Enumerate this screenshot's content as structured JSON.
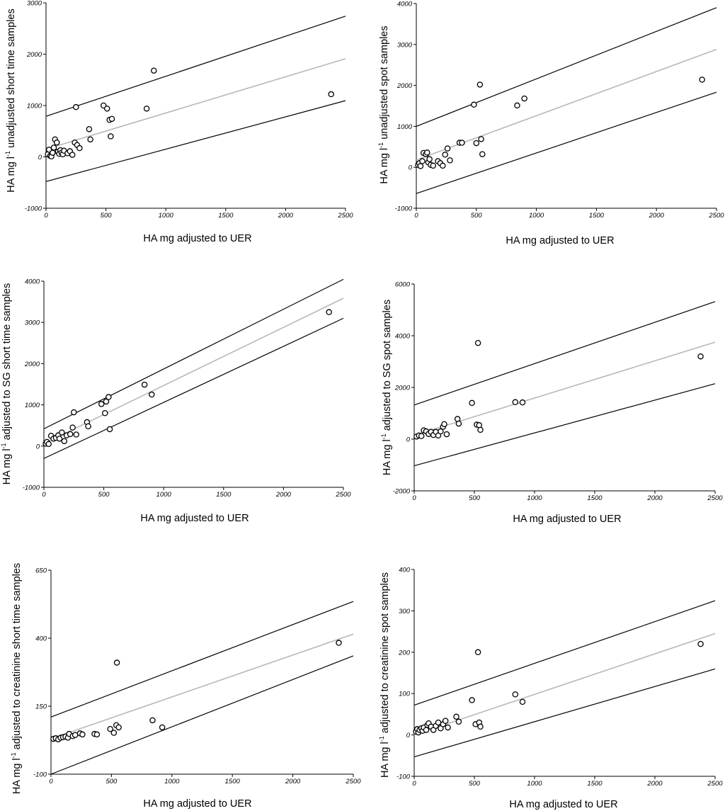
{
  "figure": {
    "description_free": true
  },
  "chart_data": [
    {
      "type": "scatter",
      "id": "a",
      "xlabel": "HA mg adjusted to UER",
      "ylabel_parts": [
        "HA mg l",
        "-1",
        " unadjusted short time samples"
      ],
      "xlim": [
        0,
        2500
      ],
      "ylim": [
        -1000,
        3000
      ],
      "xticks": [
        0,
        500,
        1000,
        1500,
        2000,
        2500
      ],
      "yticks": [
        -1000,
        0,
        1000,
        2000,
        3000
      ],
      "regression": {
        "intercept": 150,
        "slope": 0.705
      },
      "limits": [
        {
          "intercept": 790,
          "slope": 0.78
        },
        {
          "intercept": -480,
          "slope": 0.63
        }
      ],
      "points": [
        [
          15,
          50
        ],
        [
          25,
          140
        ],
        [
          35,
          20
        ],
        [
          45,
          10
        ],
        [
          55,
          80
        ],
        [
          65,
          180
        ],
        [
          75,
          340
        ],
        [
          90,
          280
        ],
        [
          100,
          100
        ],
        [
          110,
          60
        ],
        [
          120,
          130
        ],
        [
          130,
          80
        ],
        [
          140,
          50
        ],
        [
          150,
          120
        ],
        [
          180,
          70
        ],
        [
          200,
          110
        ],
        [
          220,
          40
        ],
        [
          240,
          280
        ],
        [
          250,
          970
        ],
        [
          260,
          230
        ],
        [
          280,
          170
        ],
        [
          360,
          540
        ],
        [
          370,
          340
        ],
        [
          480,
          1000
        ],
        [
          510,
          940
        ],
        [
          530,
          720
        ],
        [
          540,
          400
        ],
        [
          550,
          740
        ],
        [
          840,
          940
        ],
        [
          900,
          1680
        ],
        [
          2380,
          1220
        ]
      ]
    },
    {
      "type": "scatter",
      "id": "b",
      "xlabel": "HA mg adjusted to UER",
      "ylabel_parts": [
        "HA mg l",
        "-1",
        " unadjusted spot samples"
      ],
      "xlim": [
        0,
        2500
      ],
      "ylim": [
        -1000,
        4000
      ],
      "xticks": [
        0,
        500,
        1000,
        1500,
        2000,
        2500
      ],
      "yticks": [
        -1000,
        0,
        1000,
        2000,
        3000,
        4000
      ],
      "regression": {
        "intercept": 180,
        "slope": 1.08
      },
      "limits": [
        {
          "intercept": 1000,
          "slope": 1.16
        },
        {
          "intercept": -640,
          "slope": 0.99
        }
      ],
      "points": [
        [
          15,
          60
        ],
        [
          25,
          100
        ],
        [
          35,
          30
        ],
        [
          50,
          150
        ],
        [
          60,
          350
        ],
        [
          80,
          320
        ],
        [
          90,
          360
        ],
        [
          100,
          120
        ],
        [
          110,
          200
        ],
        [
          120,
          60
        ],
        [
          140,
          40
        ],
        [
          180,
          150
        ],
        [
          200,
          100
        ],
        [
          220,
          40
        ],
        [
          240,
          310
        ],
        [
          260,
          460
        ],
        [
          280,
          170
        ],
        [
          360,
          600
        ],
        [
          380,
          600
        ],
        [
          480,
          1530
        ],
        [
          500,
          590
        ],
        [
          530,
          2020
        ],
        [
          540,
          690
        ],
        [
          550,
          320
        ],
        [
          840,
          1510
        ],
        [
          900,
          1680
        ],
        [
          2380,
          2140
        ]
      ]
    },
    {
      "type": "scatter",
      "id": "c",
      "xlabel": "HA mg adjusted to UER",
      "ylabel_parts": [
        "HA mg l",
        "-1",
        " adjusted to SG short time samples"
      ],
      "xlim": [
        0,
        2500
      ],
      "ylim": [
        -1000,
        4000
      ],
      "xticks": [
        0,
        500,
        1000,
        1500,
        2000,
        2500
      ],
      "yticks": [
        -1000,
        0,
        1000,
        2000,
        3000,
        4000
      ],
      "regression": {
        "intercept": 60,
        "slope": 1.41
      },
      "limits": [
        {
          "intercept": 420,
          "slope": 1.45
        },
        {
          "intercept": -300,
          "slope": 1.36
        }
      ],
      "points": [
        [
          15,
          60
        ],
        [
          25,
          100
        ],
        [
          40,
          50
        ],
        [
          60,
          250
        ],
        [
          80,
          180
        ],
        [
          100,
          200
        ],
        [
          120,
          260
        ],
        [
          130,
          180
        ],
        [
          150,
          330
        ],
        [
          170,
          120
        ],
        [
          190,
          260
        ],
        [
          220,
          290
        ],
        [
          240,
          450
        ],
        [
          250,
          820
        ],
        [
          270,
          280
        ],
        [
          360,
          580
        ],
        [
          370,
          480
        ],
        [
          480,
          1020
        ],
        [
          510,
          800
        ],
        [
          520,
          1080
        ],
        [
          540,
          1190
        ],
        [
          550,
          410
        ],
        [
          840,
          1490
        ],
        [
          900,
          1250
        ],
        [
          2380,
          3250
        ]
      ]
    },
    {
      "type": "scatter",
      "id": "d",
      "xlabel": "HA mg adjusted to UER",
      "ylabel_parts": [
        "HA mg l",
        "-1",
        " adjusted to SG spot samples"
      ],
      "xlim": [
        0,
        2500
      ],
      "ylim": [
        -2000,
        6000
      ],
      "xticks": [
        0,
        500,
        1000,
        1500,
        2000,
        2500
      ],
      "yticks": [
        -2000,
        0,
        2000,
        4000,
        6000
      ],
      "regression": {
        "intercept": 150,
        "slope": 1.44
      },
      "limits": [
        {
          "intercept": 1320,
          "slope": 1.6
        },
        {
          "intercept": -1030,
          "slope": 1.27
        }
      ],
      "points": [
        [
          20,
          100
        ],
        [
          40,
          140
        ],
        [
          60,
          120
        ],
        [
          80,
          340
        ],
        [
          100,
          300
        ],
        [
          120,
          200
        ],
        [
          140,
          280
        ],
        [
          160,
          160
        ],
        [
          180,
          280
        ],
        [
          200,
          140
        ],
        [
          220,
          300
        ],
        [
          240,
          480
        ],
        [
          250,
          580
        ],
        [
          270,
          190
        ],
        [
          360,
          780
        ],
        [
          370,
          600
        ],
        [
          480,
          1400
        ],
        [
          520,
          560
        ],
        [
          530,
          3720
        ],
        [
          540,
          540
        ],
        [
          550,
          360
        ],
        [
          840,
          1430
        ],
        [
          900,
          1420
        ],
        [
          2380,
          3200
        ]
      ]
    },
    {
      "type": "scatter",
      "id": "e",
      "xlabel": "HA mg adjusted to UER",
      "ylabel_parts": [
        "HA mg l",
        "-1",
        " adjusted to creatinine short time samples"
      ],
      "xlim": [
        0,
        2500
      ],
      "ylim": [
        -100,
        650
      ],
      "xticks": [
        0,
        500,
        1000,
        1500,
        2000,
        2500
      ],
      "yticks": [
        -100,
        150,
        400,
        650
      ],
      "regression": {
        "intercept": 30,
        "slope": 0.154
      },
      "limits": [
        {
          "intercept": 110,
          "slope": 0.17
        },
        {
          "intercept": -100,
          "slope": 0.174
        }
      ],
      "points": [
        [
          20,
          30
        ],
        [
          40,
          32
        ],
        [
          60,
          28
        ],
        [
          80,
          34
        ],
        [
          100,
          36
        ],
        [
          120,
          38
        ],
        [
          140,
          34
        ],
        [
          150,
          48
        ],
        [
          180,
          40
        ],
        [
          200,
          44
        ],
        [
          240,
          50
        ],
        [
          260,
          46
        ],
        [
          360,
          48
        ],
        [
          380,
          46
        ],
        [
          490,
          66
        ],
        [
          520,
          52
        ],
        [
          540,
          80
        ],
        [
          545,
          310
        ],
        [
          560,
          72
        ],
        [
          840,
          98
        ],
        [
          920,
          72
        ],
        [
          2380,
          383
        ]
      ]
    },
    {
      "type": "scatter",
      "id": "f",
      "xlabel": "HA mg adjusted to UER",
      "ylabel_parts": [
        "HA mg l",
        "-1",
        " adjusted to creatinine spot samples"
      ],
      "xlim": [
        0,
        2500
      ],
      "ylim": [
        -100,
        400
      ],
      "xticks": [
        0,
        500,
        1000,
        1500,
        2000,
        2500
      ],
      "yticks": [
        -100,
        0,
        100,
        200,
        300,
        400
      ],
      "regression": {
        "intercept": 0,
        "slope": 0.098
      },
      "limits": [
        {
          "intercept": 72,
          "slope": 0.101
        },
        {
          "intercept": -53,
          "slope": 0.085
        }
      ],
      "points": [
        [
          15,
          8
        ],
        [
          25,
          14
        ],
        [
          35,
          6
        ],
        [
          45,
          12
        ],
        [
          60,
          16
        ],
        [
          70,
          10
        ],
        [
          80,
          18
        ],
        [
          100,
          12
        ],
        [
          110,
          24
        ],
        [
          120,
          28
        ],
        [
          140,
          20
        ],
        [
          160,
          12
        ],
        [
          180,
          22
        ],
        [
          200,
          30
        ],
        [
          220,
          16
        ],
        [
          240,
          26
        ],
        [
          260,
          34
        ],
        [
          280,
          18
        ],
        [
          350,
          44
        ],
        [
          370,
          32
        ],
        [
          480,
          84
        ],
        [
          510,
          26
        ],
        [
          530,
          200
        ],
        [
          540,
          30
        ],
        [
          550,
          20
        ],
        [
          840,
          98
        ],
        [
          900,
          80
        ],
        [
          2380,
          220
        ]
      ]
    }
  ]
}
